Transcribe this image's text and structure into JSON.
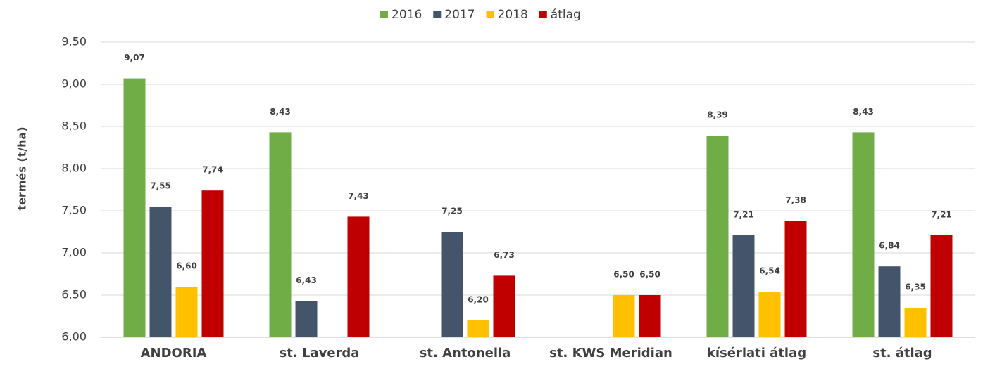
{
  "chart_data": {
    "type": "bar",
    "y_label": "termés (t/ha)",
    "categories": [
      "ANDORIA",
      "st. Laverda",
      "st. Antonella",
      "st. KWS Meridian",
      "kísérlati átlag",
      "st. átlag"
    ],
    "series": [
      {
        "name": "2016",
        "color": "#70ad47",
        "values": [
          9.07,
          8.43,
          null,
          null,
          8.39,
          8.43
        ],
        "value_labels": [
          "9,07",
          "8,43",
          null,
          null,
          "8,39",
          "8,43"
        ]
      },
      {
        "name": "2017",
        "color": "#44546a",
        "values": [
          7.55,
          6.43,
          7.25,
          null,
          7.21,
          6.84
        ],
        "value_labels": [
          "7,55",
          "6,43",
          "7,25",
          null,
          "7,21",
          "6,84"
        ]
      },
      {
        "name": "2018",
        "color": "#ffc000",
        "values": [
          6.6,
          null,
          6.2,
          6.5,
          6.54,
          6.35
        ],
        "value_labels": [
          "6,60",
          null,
          "6,20",
          "6,50",
          "6,54",
          "6,35"
        ]
      },
      {
        "name": "átlag",
        "color": "#c00000",
        "values": [
          7.74,
          7.43,
          6.73,
          6.5,
          7.38,
          7.21
        ],
        "value_labels": [
          "7,74",
          "7,43",
          "6,73",
          "6,50",
          "7,38",
          "7,21"
        ]
      }
    ],
    "ylim": [
      6,
      9.5
    ],
    "yticks": [
      {
        "value": 6,
        "label": "6,00"
      },
      {
        "value": 6.5,
        "label": "6,50"
      },
      {
        "value": 7,
        "label": "7,00"
      },
      {
        "value": 7.5,
        "label": "7,50"
      },
      {
        "value": 8,
        "label": "8,00"
      },
      {
        "value": 8.5,
        "label": "8,50"
      },
      {
        "value": 9,
        "label": "9,00"
      },
      {
        "value": 9.5,
        "label": "9,50"
      }
    ],
    "grid": true,
    "legend": "top"
  }
}
